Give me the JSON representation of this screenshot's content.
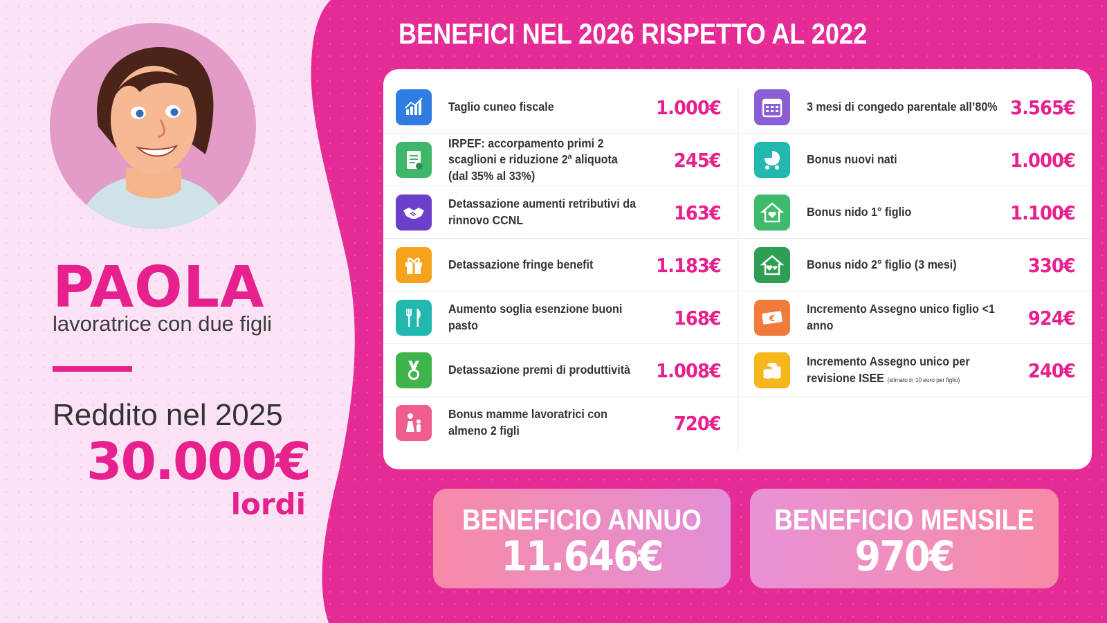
{
  "person": {
    "name": "PAOLA",
    "description": "lavoratrice con due figli",
    "income_label": "Reddito nel 2025",
    "income_value": "30.000€",
    "income_unit": "lordi"
  },
  "title": "BENEFICI NEL 2026 RISPETTO AL 2022",
  "benefits_left": [
    {
      "label": "Taglio cuneo fiscale",
      "value": "1.000€",
      "icon": "chart-icon",
      "color": "#2f7de1"
    },
    {
      "label": "IRPEF: accorpamento primi 2 scaglioni e riduzione 2ª aliquota (dal 35% al 33%)",
      "value": "245€",
      "icon": "document-icon",
      "color": "#3fb76a"
    },
    {
      "label": "Detassazione aumenti retributivi da rinnovo CCNL",
      "value": "163€",
      "icon": "handshake-icon",
      "color": "#6a3fc9"
    },
    {
      "label": "Detassazione fringe benefit",
      "value": "1.183€",
      "icon": "gift-icon",
      "color": "#f7a21b"
    },
    {
      "label": "Aumento soglia esenzione buoni pasto",
      "value": "168€",
      "icon": "cutlery-icon",
      "color": "#22b8b0"
    },
    {
      "label": "Detassazione premi di produttività",
      "value": "1.008€",
      "icon": "medal-icon",
      "color": "#3fb44a"
    },
    {
      "label": "Bonus mamme lavoratrici con almeno 2 figli",
      "value": "720€",
      "icon": "mother-child-icon",
      "color": "#ef5d8e"
    }
  ],
  "benefits_right": [
    {
      "label": "3 mesi di congedo parentale all’80%",
      "value": "3.565€",
      "icon": "calendar-icon",
      "color": "#8a5fd6"
    },
    {
      "label": "Bonus nuovi nati",
      "value": "1.000€",
      "icon": "stroller-icon",
      "color": "#22b8b0"
    },
    {
      "label": "Bonus nido 1° figlio",
      "value": "1.100€",
      "icon": "home-heart-icon",
      "color": "#3dbb6b"
    },
    {
      "label": "Bonus nido 2° figlio (3 mesi)",
      "value": "330€",
      "icon": "home-hearts-icon",
      "color": "#2e9e55"
    },
    {
      "label": "Incremento Assegno unico figlio <1 anno",
      "value": "924€",
      "icon": "euro-banknote-icon",
      "color": "#f07a3a"
    },
    {
      "label": "Incremento Assegno unico per revisione ISEE",
      "note": "(stimato in 10 euro per figlio)",
      "value": "240€",
      "icon": "coins-icon",
      "color": "#f6b71c"
    }
  ],
  "summary": {
    "annual_label": "BENEFICIO ANNUO",
    "annual_value": "11.646€",
    "monthly_label": "BENEFICIO MENSILE",
    "monthly_value": "970€"
  },
  "colors": {
    "accent": "#e6218e",
    "pink_panel": "#e52c96",
    "left_panel": "#fbe3f5"
  }
}
